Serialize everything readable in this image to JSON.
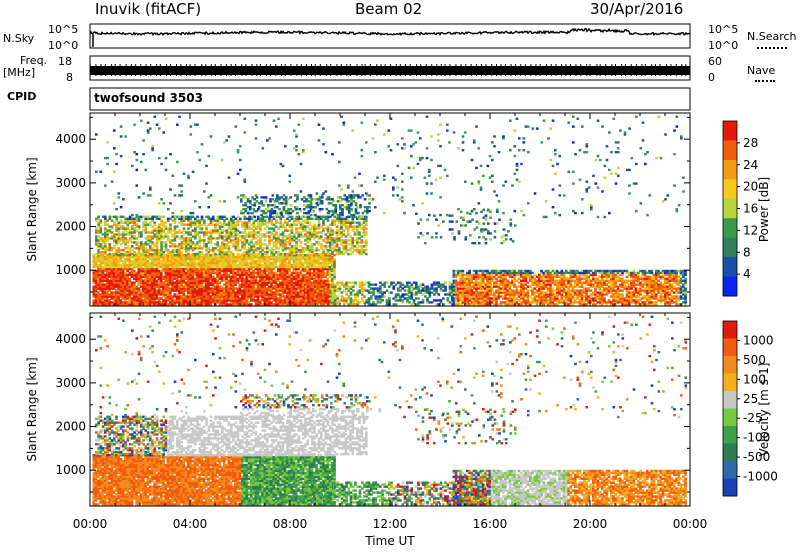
{
  "header": {
    "station": "Inuvik (fitACF)",
    "beam": "Beam 02",
    "date": "30/Apr/2016"
  },
  "panels": {
    "nsky": {
      "left_label": "N.Sky",
      "right_label": "N.Search",
      "axis_top": "10^5",
      "axis_bottom": "10^0"
    },
    "freq": {
      "left_label_line1": "Freq.",
      "left_label_line2": "[MHz]",
      "axis_left_top": "18",
      "axis_left_bottom": "8",
      "right_label": "Nave",
      "axis_right_top": "60",
      "axis_right_bottom": "0"
    },
    "cpid": {
      "label": "CPID",
      "program": "twofsound 3503"
    }
  },
  "chart_data": [
    {
      "type": "heatmap",
      "title": "",
      "xlabel": "",
      "ylabel": "Slant Range [km]",
      "x_ticks": [
        "00:00",
        "04:00",
        "08:00",
        "12:00",
        "16:00",
        "20:00",
        "00:00"
      ],
      "y_ticks": [
        1000,
        2000,
        3000,
        4000
      ],
      "xlim_hours": [
        0,
        24
      ],
      "ylim": [
        180,
        4600
      ],
      "colorbar_label": "Power [dB]",
      "colorbar_ticks": [
        4,
        8,
        12,
        16,
        20,
        24,
        28
      ],
      "colorbar_colors": [
        "#0b24f2",
        "#1a4fa8",
        "#2e7d5b",
        "#3c9a4a",
        "#b7d53a",
        "#f7c81e",
        "#f59a10",
        "#f25c0a",
        "#e21a0c"
      ]
    },
    {
      "type": "heatmap",
      "title": "",
      "xlabel": "Time UT",
      "ylabel": "Slant Range [km]",
      "x_ticks": [
        "00:00",
        "04:00",
        "08:00",
        "12:00",
        "16:00",
        "20:00",
        "00:00"
      ],
      "y_ticks": [
        1000,
        2000,
        3000,
        4000
      ],
      "xlim_hours": [
        0,
        24
      ],
      "ylim": [
        180,
        4600
      ],
      "colorbar_label": "Velocity [m s-1]",
      "colorbar_ticks": [
        "1000",
        "500",
        "100",
        "25",
        "-25",
        "-100",
        "-500",
        "-1000"
      ],
      "colorbar_colors": [
        "#1840b8",
        "#2c6aa8",
        "#2e7d4e",
        "#3fa04a",
        "#78c840",
        "#c8c8c8",
        "#f2b01e",
        "#f58a1c",
        "#f25c10",
        "#e21a0c"
      ]
    }
  ],
  "colors": {
    "axis": "#000000",
    "background": "#ffffff"
  }
}
